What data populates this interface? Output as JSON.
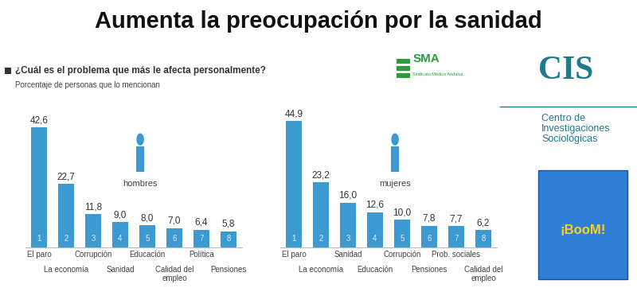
{
  "title": "Aumenta la preocupación por la sanidad",
  "question": "¿Cuál es el problema que más le afecta personalmente?",
  "subtitle": "Porcentaje de personas que lo mencionan",
  "logos": {
    "sma": "SMA",
    "sma_name": "Sindicato Médico Andaluz",
    "cis": "CIS",
    "cis_name": "Centro de Investigaciones Sociológicas",
    "boom": "¡BooM!"
  },
  "chart_data": [
    {
      "type": "bar",
      "title": "hombres",
      "categories": [
        "El paro",
        "La economía",
        "Corrupción",
        "Sanidad",
        "Educación",
        "Calidad del empleo",
        "Política",
        "Pensiones"
      ],
      "values": [
        42.6,
        22.7,
        11.8,
        9.0,
        8.0,
        7.0,
        6.4,
        5.8
      ],
      "value_labels": [
        "42,6",
        "22,7",
        "11,8",
        "9,0",
        "8,0",
        "7,0",
        "6,4",
        "5,8"
      ],
      "ranks": [
        1,
        2,
        3,
        4,
        5,
        6,
        7,
        8
      ],
      "color": "#3d9ad1",
      "ylim": [
        0,
        48
      ],
      "data_labels": true,
      "tick_labels": "x",
      "grid": false
    },
    {
      "type": "bar",
      "title": "mujeres",
      "categories": [
        "El paro",
        "La economía",
        "Sanidad",
        "Educación",
        "Corrupción",
        "Pensiones",
        "Prob. sociales",
        "Calidad del empleo"
      ],
      "values": [
        44.9,
        23.2,
        16.0,
        12.6,
        10.0,
        7.8,
        7.7,
        6.2
      ],
      "value_labels": [
        "44,9",
        "23,2",
        "16,0",
        "12,6",
        "10,0",
        "7,8",
        "7,7",
        "6,2"
      ],
      "ranks": [
        1,
        2,
        3,
        4,
        5,
        6,
        7,
        8
      ],
      "color": "#3d9ad1",
      "ylim": [
        0,
        48
      ],
      "data_labels": true,
      "tick_labels": "x",
      "grid": false
    }
  ]
}
